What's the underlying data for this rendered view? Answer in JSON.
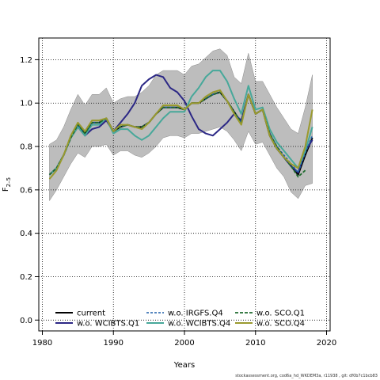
{
  "chart_data": {
    "type": "line",
    "title": "",
    "xlabel": "Years",
    "ylabel": "F",
    "ylabel_sub": "2–5",
    "xlim": [
      1979.5,
      2020.5
    ],
    "ylim": [
      -0.05,
      1.3
    ],
    "x_ticks": [
      1980,
      1990,
      2000,
      2010,
      2020
    ],
    "y_ticks": [
      0.0,
      0.2,
      0.4,
      0.6,
      0.8,
      1.0,
      1.2
    ],
    "x_tick_labels": [
      "1980",
      "1990",
      "2000",
      "2010",
      "2020"
    ],
    "y_tick_labels": [
      "0.0",
      "0.2",
      "0.4",
      "0.6",
      "0.8",
      "1.0",
      "1.2"
    ],
    "grid": true,
    "legend_position": "bottom",
    "band": {
      "color": "#bdbdbd",
      "x": [
        1981,
        1982,
        1983,
        1984,
        1985,
        1986,
        1987,
        1988,
        1989,
        1990,
        1991,
        1992,
        1993,
        1994,
        1995,
        1996,
        1997,
        1998,
        1999,
        2000,
        2001,
        2002,
        2003,
        2004,
        2005,
        2006,
        2007,
        2008,
        2009,
        2010,
        2011,
        2012,
        2013,
        2014,
        2015,
        2016,
        2017,
        2018
      ],
      "upper": [
        0.81,
        0.83,
        0.89,
        0.97,
        1.04,
        0.99,
        1.04,
        1.04,
        1.07,
        1.0,
        1.02,
        1.03,
        1.03,
        1.05,
        1.08,
        1.13,
        1.15,
        1.15,
        1.15,
        1.13,
        1.17,
        1.18,
        1.21,
        1.24,
        1.25,
        1.22,
        1.12,
        1.09,
        1.23,
        1.1,
        1.1,
        1.04,
        0.98,
        0.93,
        0.88,
        0.86,
        0.98,
        1.13
      ],
      "lower": [
        0.55,
        0.6,
        0.66,
        0.72,
        0.77,
        0.75,
        0.8,
        0.8,
        0.81,
        0.76,
        0.78,
        0.78,
        0.76,
        0.75,
        0.77,
        0.8,
        0.84,
        0.85,
        0.85,
        0.84,
        0.86,
        0.86,
        0.87,
        0.88,
        0.89,
        0.87,
        0.83,
        0.78,
        0.87,
        0.81,
        0.82,
        0.76,
        0.7,
        0.66,
        0.59,
        0.56,
        0.62,
        0.63
      ]
    },
    "series": [
      {
        "name": "current",
        "color": "#000000",
        "dash": "",
        "width": 2,
        "x": [
          1981,
          1982,
          1983,
          1984,
          1985,
          1986,
          1987,
          1988,
          1989,
          1990,
          1991,
          1992,
          1993,
          1994,
          1995,
          1996,
          1997,
          1998,
          1999,
          2000,
          2001,
          2002,
          2003,
          2004,
          2005,
          2006,
          2007,
          2008,
          2009,
          2010,
          2011,
          2012,
          2013,
          2014,
          2015,
          2016,
          2017,
          2018
        ],
        "values": [
          0.67,
          0.7,
          0.76,
          0.84,
          0.9,
          0.86,
          0.91,
          0.91,
          0.93,
          0.87,
          0.89,
          0.9,
          0.89,
          0.89,
          0.91,
          0.95,
          0.98,
          0.98,
          0.98,
          0.97,
          1.0,
          1.0,
          1.02,
          1.04,
          1.05,
          1.01,
          0.96,
          0.91,
          1.04,
          0.95,
          0.97,
          0.85,
          0.79,
          0.75,
          0.71,
          0.67,
          0.76,
          0.84
        ]
      },
      {
        "name": "w.o. WCIBTS.Q1",
        "color": "#2b2785",
        "dash": "",
        "width": 2,
        "x": [
          1981,
          1982,
          1983,
          1984,
          1985,
          1986,
          1987,
          1988,
          1989,
          1990,
          1991,
          1992,
          1993,
          1994,
          1995,
          1996,
          1997,
          1998,
          1999,
          2000,
          2001,
          2002,
          2003,
          2004,
          2005,
          2006,
          2007,
          2008,
          2009,
          2010,
          2011,
          2012,
          2013,
          2014,
          2015,
          2016,
          2017,
          2018
        ],
        "values": [
          0.67,
          0.7,
          0.76,
          0.84,
          0.89,
          0.85,
          0.88,
          0.89,
          0.92,
          0.87,
          0.91,
          0.95,
          1.0,
          1.08,
          1.11,
          1.13,
          1.12,
          1.07,
          1.05,
          1.01,
          0.94,
          0.88,
          0.86,
          0.85,
          0.88,
          0.91,
          0.95,
          0.92,
          1.04,
          0.95,
          0.97,
          0.86,
          0.79,
          0.75,
          0.71,
          0.68,
          0.78,
          0.83
        ]
      },
      {
        "name": "w.o. IRGFS.Q4",
        "color": "#1f5fa8",
        "dash": "3,2",
        "width": 1.6,
        "x": [
          1981,
          1982,
          1983,
          1984,
          1985,
          1986,
          1987,
          1988,
          1989,
          1990,
          1991,
          1992,
          1993,
          1994,
          1995,
          1996,
          1997,
          1998,
          1999,
          2000,
          2001,
          2002,
          2003,
          2004,
          2005,
          2006,
          2007,
          2008,
          2009,
          2010,
          2011,
          2012,
          2013,
          2014,
          2015,
          2016,
          2017,
          2018
        ],
        "values": [
          0.67,
          0.7,
          0.76,
          0.84,
          0.9,
          0.86,
          0.91,
          0.91,
          0.93,
          0.87,
          0.89,
          0.9,
          0.89,
          0.89,
          0.91,
          0.95,
          0.98,
          0.98,
          0.98,
          0.97,
          1.0,
          1.0,
          1.02,
          1.04,
          1.05,
          1.01,
          0.96,
          0.91,
          1.04,
          0.95,
          0.97,
          0.86,
          0.8,
          0.76,
          0.72,
          0.68,
          0.77,
          0.85
        ]
      },
      {
        "name": "w.o. WCIBTS.Q4",
        "color": "#47a89a",
        "dash": "",
        "width": 2,
        "x": [
          1981,
          1982,
          1983,
          1984,
          1985,
          1986,
          1987,
          1988,
          1989,
          1990,
          1991,
          1992,
          1993,
          1994,
          1995,
          1996,
          1997,
          1998,
          1999,
          2000,
          2001,
          2002,
          2003,
          2004,
          2005,
          2006,
          2007,
          2008,
          2009,
          2010,
          2011,
          2012,
          2013,
          2014,
          2015,
          2016,
          2017,
          2018
        ],
        "values": [
          0.67,
          0.7,
          0.76,
          0.84,
          0.89,
          0.85,
          0.9,
          0.9,
          0.93,
          0.86,
          0.88,
          0.88,
          0.85,
          0.83,
          0.85,
          0.89,
          0.93,
          0.96,
          0.96,
          0.96,
          1.03,
          1.07,
          1.12,
          1.15,
          1.15,
          1.1,
          1.02,
          0.95,
          1.08,
          0.97,
          0.98,
          0.88,
          0.82,
          0.78,
          0.74,
          0.7,
          0.78,
          0.89
        ]
      },
      {
        "name": "w.o. SCO.Q1",
        "color": "#1f6b2e",
        "dash": "4,2",
        "width": 1.8,
        "x": [
          1981,
          1982,
          1983,
          1984,
          1985,
          1986,
          1987,
          1988,
          1989,
          1990,
          1991,
          1992,
          1993,
          1994,
          1995,
          1996,
          1997,
          1998,
          1999,
          2000,
          2001,
          2002,
          2003,
          2004,
          2005,
          2006,
          2007,
          2008,
          2009,
          2010,
          2011,
          2012,
          2013,
          2014,
          2015,
          2016,
          2017
        ],
        "values": [
          0.67,
          0.7,
          0.76,
          0.84,
          0.9,
          0.86,
          0.91,
          0.91,
          0.93,
          0.87,
          0.89,
          0.9,
          0.89,
          0.89,
          0.91,
          0.95,
          0.98,
          0.98,
          0.98,
          0.97,
          1.0,
          1.0,
          1.02,
          1.04,
          1.05,
          1.01,
          0.96,
          0.91,
          1.04,
          0.95,
          0.97,
          0.86,
          0.8,
          0.75,
          0.71,
          0.66,
          0.69
        ]
      },
      {
        "name": "w.o. SCO.Q4",
        "color": "#9a9a2e",
        "dash": "",
        "width": 2,
        "x": [
          1981,
          1982,
          1983,
          1984,
          1985,
          1986,
          1987,
          1988,
          1989,
          1990,
          1991,
          1992,
          1993,
          1994,
          1995,
          1996,
          1997,
          1998,
          1999,
          2000,
          2001,
          2002,
          2003,
          2004,
          2005,
          2006,
          2007,
          2008,
          2009,
          2010,
          2011,
          2012,
          2013,
          2014,
          2015,
          2016,
          2017,
          2018
        ],
        "values": [
          0.65,
          0.69,
          0.76,
          0.85,
          0.91,
          0.87,
          0.92,
          0.92,
          0.93,
          0.87,
          0.9,
          0.9,
          0.89,
          0.88,
          0.91,
          0.95,
          0.99,
          0.99,
          0.99,
          0.97,
          1.0,
          1.0,
          1.03,
          1.05,
          1.06,
          1.01,
          0.95,
          0.9,
          1.04,
          0.95,
          0.97,
          0.85,
          0.79,
          0.75,
          0.72,
          0.7,
          0.8,
          0.97
        ]
      }
    ]
  },
  "footer": "stockassessment.org, cod6a_hd_WKDEM3a, r11938 , git: df0b7c1bcb83"
}
